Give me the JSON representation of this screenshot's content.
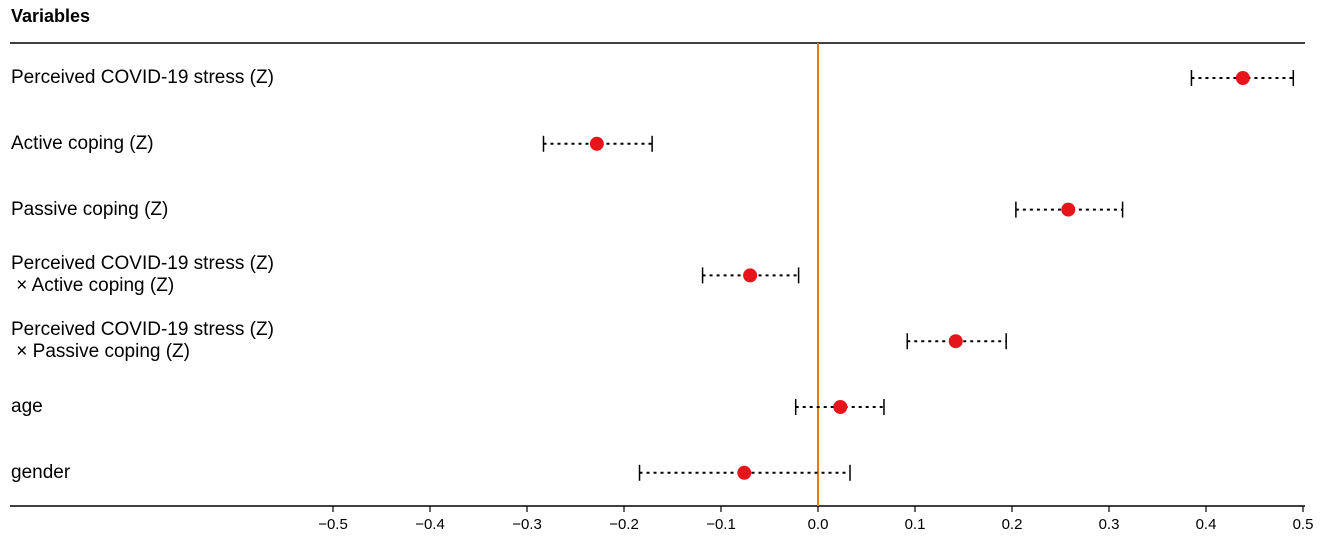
{
  "chart_data": {
    "type": "forest",
    "y_label": "Variables",
    "categories": [
      "Perceived COVID-19 stress (Z)",
      "Active coping (Z)",
      "Passive coping (Z)",
      "Perceived COVID-19 stress (Z)\n × Active coping (Z)",
      "Perceived COVID-19 stress (Z)\n × Passive coping (Z)",
      "age",
      "gender"
    ],
    "values": [
      0.438,
      -0.228,
      0.258,
      -0.07,
      0.142,
      0.023,
      -0.076
    ],
    "ci_low": [
      0.385,
      -0.283,
      0.204,
      -0.119,
      0.092,
      -0.023,
      -0.184
    ],
    "ci_high": [
      0.49,
      -0.171,
      0.314,
      -0.02,
      0.194,
      0.068,
      0.033
    ],
    "color": "#e8141c",
    "reference": 0,
    "reference_color": "#e07b1f",
    "xlim": [
      -0.5,
      0.5
    ],
    "xticks": [
      {
        "value": -0.5,
        "label": "−0.5"
      },
      {
        "value": -0.4,
        "label": "−0.4"
      },
      {
        "value": -0.3,
        "label": "−0.3"
      },
      {
        "value": -0.2,
        "label": "−0.2"
      },
      {
        "value": -0.1,
        "label": "−0.1"
      },
      {
        "value": 0,
        "label": "0.0"
      },
      0.1,
      0.2,
      0.3,
      0.4,
      0.5
    ]
  }
}
